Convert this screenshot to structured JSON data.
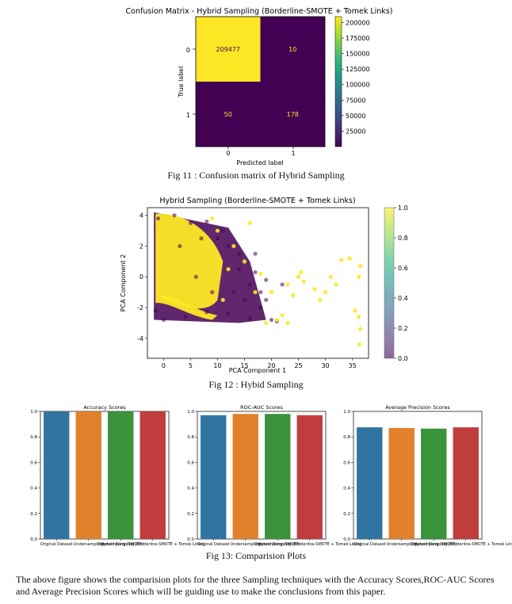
{
  "colors": {
    "viridis": [
      "#440154",
      "#482878",
      "#3e4989",
      "#31688e",
      "#26828e",
      "#1f9e89",
      "#35b779",
      "#6ece58",
      "#b5de2b",
      "#fde725"
    ],
    "bars": [
      "#3274a1",
      "#e1812c",
      "#3a923a",
      "#c03d3e"
    ]
  },
  "figure11": {
    "caption": "Fig 11 : Confusion matrix of Hybrid Sampling",
    "chart_data": {
      "type": "heatmap",
      "title": "Confusion Matrix - Hybrid Sampling (Borderline-SMOTE + Tomek Links)",
      "xlabel": "Predicted label",
      "ylabel": "True label",
      "x_categories": [
        "0",
        "1"
      ],
      "y_categories": [
        "0",
        "1"
      ],
      "values": [
        [
          209477,
          10
        ],
        [
          50,
          178
        ]
      ],
      "colorbar_ticks": [
        25000,
        50000,
        75000,
        100000,
        125000,
        150000,
        175000,
        200000
      ],
      "colormap": "viridis"
    }
  },
  "figure12": {
    "caption": "Fig 12 : Hybid Sampling",
    "chart_data": {
      "type": "scatter",
      "title": "Hybrid Sampling (Borderline-SMOTE + Tomek Links)",
      "xlabel": "PCA Component 1",
      "ylabel": "PCA Component 2",
      "xlim": [
        -3,
        38
      ],
      "ylim": [
        -5.3,
        4.5
      ],
      "xticks": [
        "0",
        "5",
        "10",
        "15",
        "20",
        "25",
        "30",
        "35"
      ],
      "yticks": [
        "4",
        "2",
        "0",
        "-2",
        "-4"
      ],
      "colorbar_ticks": [
        "0.0",
        "0.2",
        "0.4",
        "0.6",
        "0.8",
        "1.0"
      ],
      "colormap": "viridis",
      "series": [
        {
          "name": "0",
          "points": [
            [
              -1.5,
              -2.2
            ],
            [
              -1,
              3.8
            ],
            [
              2,
              4
            ],
            [
              5,
              3.5
            ],
            [
              8,
              3.6
            ],
            [
              10,
              2.5
            ],
            [
              12,
              2
            ],
            [
              14,
              1.5
            ],
            [
              17,
              0.3
            ],
            [
              19,
              -0.2
            ],
            [
              22,
              -0.5
            ],
            [
              18,
              -2
            ],
            [
              16,
              -2.7
            ],
            [
              12,
              -2.4
            ],
            [
              8,
              -2.3
            ],
            [
              4,
              -2.6
            ],
            [
              0,
              -2.8
            ],
            [
              14,
              0.5
            ],
            [
              15,
              -1.5
            ],
            [
              20,
              -2.8
            ],
            [
              21,
              -2.9
            ],
            [
              18,
              -1
            ],
            [
              6,
              0
            ],
            [
              9,
              -1
            ],
            [
              11,
              3
            ],
            [
              17,
              1.5
            ],
            [
              13,
              -1
            ],
            [
              16,
              -0.5
            ],
            [
              19,
              -1.5
            ],
            [
              3,
              2
            ],
            [
              7,
              2.5
            ]
          ]
        },
        {
          "name": "1",
          "points": [
            [
              33,
              1.1
            ],
            [
              34.5,
              1.2
            ],
            [
              36.5,
              0.7
            ],
            [
              36.2,
              0
            ],
            [
              35.5,
              -2.2
            ],
            [
              36.2,
              -2.6
            ],
            [
              36.5,
              -3.4
            ],
            [
              36.3,
              -4.4
            ],
            [
              30,
              -1
            ],
            [
              31,
              0
            ],
            [
              28,
              -0.8
            ],
            [
              25,
              0
            ],
            [
              25.5,
              0.3
            ],
            [
              23,
              -0.5
            ],
            [
              24,
              -1.2
            ],
            [
              21,
              -2.8
            ],
            [
              19,
              -3
            ],
            [
              17,
              -1
            ],
            [
              18,
              0.2
            ],
            [
              20,
              -1
            ],
            [
              26,
              -0.3
            ],
            [
              23,
              -3
            ],
            [
              22,
              -2.5
            ],
            [
              10,
              3
            ],
            [
              13,
              2
            ],
            [
              15,
              1
            ],
            [
              11,
              -1.5
            ],
            [
              16,
              3.5
            ],
            [
              9,
              3.8
            ],
            [
              12,
              0.5
            ],
            [
              29,
              -1.5
            ],
            [
              32,
              -0.5
            ]
          ]
        }
      ]
    }
  },
  "figure13": {
    "caption": "Fig 13: Comparision Plots",
    "chart_data": [
      {
        "type": "bar",
        "title": "Accuracy Scores",
        "categories": [
          "Original Dataset",
          "Undersampling",
          "Oversampling (SMOTE)",
          "Hybrid Sampling (Borderline-SMOTE + Tomek Links)"
        ],
        "values": [
          0.9994,
          0.9993,
          0.9996,
          0.9997
        ],
        "ylim": [
          0,
          1.0
        ],
        "yticks": [
          "0.0",
          "0.2",
          "0.4",
          "0.6",
          "0.8",
          "1.0"
        ],
        "xtick_labels": [
          "Original Dataset",
          "Undersampling",
          "Oversampling (SMOTE)",
          "Hybrid Sampling (Borderline-SMOTE + Tomek Links)"
        ]
      },
      {
        "type": "bar",
        "title": "ROC-AUC Scores",
        "categories": [
          "Original Dataset",
          "Undersampling",
          "Oversampling (SMOTE)",
          "Hybrid Sampling (Borderline-SMOTE + Tomek Links)"
        ],
        "values": [
          0.97,
          0.98,
          0.98,
          0.97
        ],
        "ylim": [
          0,
          1.0
        ],
        "yticks": [
          "0.0",
          "0.2",
          "0.4",
          "0.6",
          "0.8",
          "1.0"
        ],
        "xtick_labels": [
          "Original Dataset",
          "Undersampling",
          "Oversampling (SMOTE)",
          "Hybrid Sampling (Borderline-SMOTE + Tomek Links)"
        ]
      },
      {
        "type": "bar",
        "title": "Average Precision Scores",
        "categories": [
          "Original Dataset",
          "Undersampling",
          "Oversampling (SMOTE)",
          "Hybrid Sampling (Borderline-SMOTE + Tomek Links)"
        ],
        "values": [
          0.875,
          0.87,
          0.865,
          0.875
        ],
        "ylim": [
          0,
          1.0
        ],
        "yticks": [
          "0.0",
          "0.2",
          "0.4",
          "0.6",
          "0.8",
          "1.0"
        ],
        "xtick_labels": [
          "Original Dataset",
          "Undersampling",
          "Oversampling (SMOTE)",
          "Hybrid Sampling (Borderline-SMOTE + Tomek Links)"
        ]
      }
    ]
  },
  "paragraph": "The above figure shows the comparision plots for the three Sampling techniques with the Accuracy Scores,ROC-AUC Scores and Average Precision Scores which will be guiding use to make the conclusions from this paper."
}
